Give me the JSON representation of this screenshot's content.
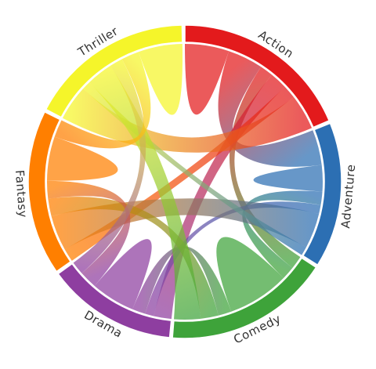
{
  "chart_data": {
    "type": "chord",
    "title": "",
    "groups": [
      {
        "name": "Action",
        "color": "#e31a1c"
      },
      {
        "name": "Adventure",
        "color": "#2c6fb3"
      },
      {
        "name": "Comedy",
        "color": "#3ea33a"
      },
      {
        "name": "Drama",
        "color": "#8e3ea0"
      },
      {
        "name": "Fantasy",
        "color": "#ff7f00"
      },
      {
        "name": "Thriller",
        "color": "#f5f52a"
      }
    ],
    "matrix": [
      [
        10,
        8,
        3,
        4,
        3,
        8
      ],
      [
        8,
        6,
        3,
        2,
        8,
        2
      ],
      [
        3,
        3,
        14,
        3,
        4,
        6
      ],
      [
        4,
        2,
        3,
        10,
        4,
        3
      ],
      [
        3,
        8,
        4,
        4,
        10,
        4
      ],
      [
        8,
        2,
        6,
        3,
        4,
        10
      ]
    ]
  }
}
